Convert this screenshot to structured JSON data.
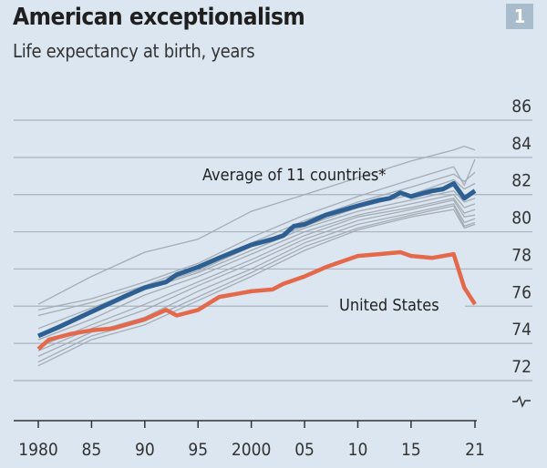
{
  "header": {
    "title": "American exceptionalism",
    "subtitle": "Life expectancy at birth, years",
    "badge": "1"
  },
  "chart_data": {
    "type": "line",
    "title": "American exceptionalism",
    "subtitle": "Life expectancy at birth, years",
    "xlim": [
      1980,
      2021
    ],
    "ylim": [
      72,
      86
    ],
    "yaxis_position": "right",
    "y_axis_break": true,
    "grid": true,
    "x_ticks": [
      1980,
      1985,
      1990,
      1995,
      2000,
      2005,
      2010,
      2015,
      2021
    ],
    "x_tick_labels": [
      "1980",
      "85",
      "90",
      "95",
      "2000",
      "05",
      "10",
      "15",
      "21"
    ],
    "y_ticks": [
      72,
      74,
      76,
      78,
      80,
      82,
      84,
      86
    ],
    "y_tick_labels": [
      "72",
      "74",
      "76",
      "78",
      "80",
      "82",
      "84",
      "86"
    ],
    "colors": {
      "average": "#2e5f93",
      "united_states": "#e4694b",
      "countries": "#a4acb4",
      "grid": "#a9b4be",
      "background": "#dce6f0"
    },
    "series": [
      {
        "name": "Average of 11 countries*",
        "label": "Average of 11 countries*",
        "color": "#2e5f93",
        "x": [
          1980,
          1982,
          1985,
          1988,
          1990,
          1992,
          1993,
          1995,
          1997,
          2000,
          2002,
          2003,
          2004,
          2005,
          2007,
          2010,
          2012,
          2013,
          2014,
          2015,
          2017,
          2018,
          2019,
          2020,
          2021
        ],
        "y": [
          74.4,
          74.9,
          75.7,
          76.5,
          77.0,
          77.3,
          77.7,
          78.1,
          78.6,
          79.3,
          79.6,
          79.8,
          80.3,
          80.4,
          80.9,
          81.4,
          81.7,
          81.8,
          82.1,
          81.9,
          82.2,
          82.3,
          82.6,
          81.8,
          82.2
        ]
      },
      {
        "name": "United States",
        "label": "United States",
        "color": "#e4694b",
        "x": [
          1980,
          1981,
          1983,
          1985,
          1987,
          1990,
          1992,
          1993,
          1995,
          1997,
          2000,
          2002,
          2003,
          2005,
          2007,
          2010,
          2012,
          2014,
          2015,
          2017,
          2019,
          2020,
          2021
        ],
        "y": [
          73.7,
          74.2,
          74.5,
          74.7,
          74.8,
          75.3,
          75.8,
          75.5,
          75.8,
          76.5,
          76.8,
          76.9,
          77.2,
          77.6,
          78.1,
          78.7,
          78.8,
          78.9,
          78.7,
          78.6,
          78.8,
          77.0,
          76.1
        ]
      },
      {
        "x_ref": "gray",
        "color": "#a4acb4",
        "values_group": "countries"
      }
    ],
    "countries_x": [
      1980,
      1985,
      1990,
      1995,
      2000,
      2005,
      2010,
      2015,
      2019,
      2020,
      2021
    ],
    "countries": [
      [
        76.1,
        77.6,
        78.9,
        79.6,
        81.1,
        82.0,
        82.9,
        83.8,
        84.4,
        84.6,
        84.4
      ],
      [
        75.8,
        76.4,
        77.3,
        78.3,
        79.7,
        80.9,
        81.9,
        82.8,
        83.5,
        82.5,
        83.9
      ],
      [
        75.5,
        76.2,
        77.1,
        78.2,
        79.4,
        80.6,
        81.6,
        82.4,
        83.1,
        82.7,
        83.2
      ],
      [
        74.8,
        75.9,
        77.0,
        77.9,
        79.2,
        80.3,
        81.3,
        82.0,
        82.8,
        82.3,
        82.6
      ],
      [
        74.5,
        75.6,
        76.9,
        77.8,
        79.0,
        80.2,
        81.1,
        81.7,
        82.2,
        81.6,
        81.8
      ],
      [
        74.2,
        75.3,
        76.6,
        77.6,
        78.8,
        80.0,
        80.9,
        81.5,
        82.0,
        81.3,
        81.5
      ],
      [
        73.8,
        75.0,
        76.1,
        77.3,
        78.5,
        79.8,
        80.8,
        81.3,
        81.8,
        81.0,
        81.2
      ],
      [
        73.6,
        74.8,
        75.8,
        77.1,
        78.3,
        79.6,
        80.6,
        81.2,
        81.7,
        80.8,
        80.9
      ],
      [
        73.3,
        74.6,
        75.4,
        76.8,
        78.0,
        79.4,
        80.4,
        81.0,
        81.5,
        80.5,
        80.7
      ],
      [
        73.0,
        74.4,
        75.2,
        76.5,
        77.8,
        79.2,
        80.2,
        80.9,
        81.4,
        80.3,
        80.5
      ],
      [
        72.8,
        74.2,
        75.0,
        76.3,
        77.6,
        79.0,
        80.1,
        80.8,
        81.2,
        80.2,
        80.4
      ]
    ]
  }
}
